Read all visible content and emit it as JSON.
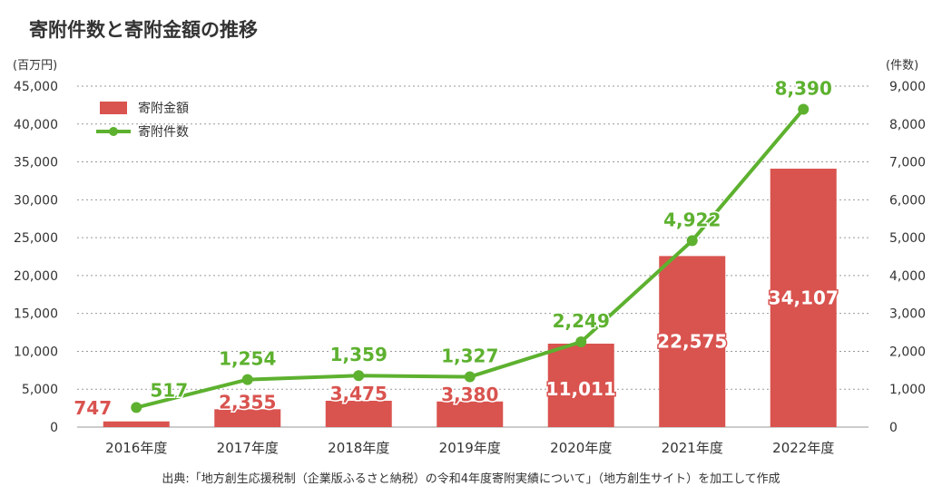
{
  "chart_data": {
    "type": "bar",
    "title": "寄附件数と寄附金額の推移",
    "left_axis_unit": "(百万円)",
    "right_axis_unit": "(件数)",
    "categories": [
      "2016年度",
      "2017年度",
      "2018年度",
      "2019年度",
      "2020年度",
      "2021年度",
      "2022年度"
    ],
    "left_ticks": [
      "0",
      "5,000",
      "10,000",
      "15,000",
      "20,000",
      "25,000",
      "30,000",
      "35,000",
      "40,000",
      "45,000"
    ],
    "right_ticks": [
      "0",
      "1,000",
      "2,000",
      "3,000",
      "4,000",
      "5,000",
      "6,000",
      "7,000",
      "8,000",
      "9,000"
    ],
    "ylim_left": [
      0,
      45000
    ],
    "ylim_right": [
      0,
      9000
    ],
    "grid": true,
    "legend_position": "top-left",
    "series": [
      {
        "name": "寄附金額",
        "type": "bar",
        "axis": "left",
        "color": "#d9534f",
        "values": [
          747,
          2355,
          3475,
          3380,
          11011,
          22575,
          34107
        ],
        "labels": [
          "747",
          "2,355",
          "3,475",
          "3,380",
          "11,011",
          "22,575",
          "34,107"
        ]
      },
      {
        "name": "寄附件数",
        "type": "line",
        "axis": "right",
        "color": "#5db12f",
        "values": [
          517,
          1254,
          1359,
          1327,
          2249,
          4922,
          8390
        ],
        "labels": [
          "517",
          "1,254",
          "1,359",
          "1,327",
          "2,249",
          "4,922",
          "8,390"
        ]
      }
    ],
    "source": "出典:「地方創生応援税制（企業版ふるさと納税）の令和4年度寄附実績について」（地方創生サイト）を加工して作成"
  }
}
